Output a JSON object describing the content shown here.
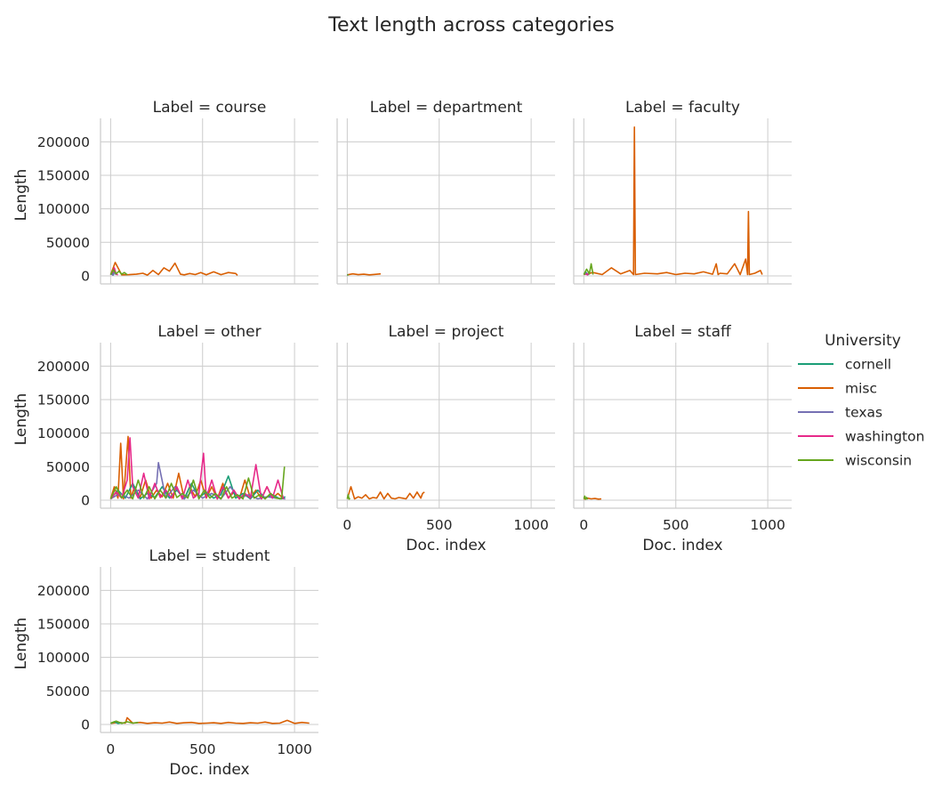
{
  "chart_data": {
    "type": "line",
    "title": "Text length across categories",
    "xlabel": "Doc. index",
    "ylabel": "Length",
    "xlim": [
      -55,
      1130
    ],
    "ylim": [
      -12000,
      235000
    ],
    "xticks": [
      0,
      500,
      1000
    ],
    "yticks": [
      0,
      50000,
      100000,
      150000,
      200000
    ],
    "grid": true,
    "legend": {
      "title": "University",
      "placement": "right",
      "entries": [
        {
          "name": "cornell",
          "color": "#1b9e77"
        },
        {
          "name": "misc",
          "color": "#d95f02"
        },
        {
          "name": "texas",
          "color": "#7570b3"
        },
        {
          "name": "washington",
          "color": "#e7298a"
        },
        {
          "name": "wisconsin",
          "color": "#66a61e"
        }
      ]
    },
    "facets": [
      {
        "title": "Label = course",
        "series": [
          {
            "name": "misc",
            "x": [
              0,
              25,
              60,
              100,
              140,
              175,
              200,
              230,
              260,
              290,
              320,
              350,
              380,
              400,
              430,
              460,
              490,
              520,
              560,
              600,
              640,
              680,
              690
            ],
            "y": [
              1500,
              20000,
              1500,
              1800,
              2500,
              4000,
              1200,
              8000,
              2000,
              12000,
              7000,
              19000,
              2500,
              1500,
              3500,
              2000,
              5000,
              1500,
              6000,
              1800,
              5000,
              3500,
              800
            ]
          },
          {
            "name": "cornell",
            "x": [
              0,
              8,
              15,
              22,
              30
            ],
            "y": [
              2000,
              5000,
              1500,
              8000,
              2500
            ]
          },
          {
            "name": "texas",
            "x": [
              5,
              12,
              20,
              28
            ],
            "y": [
              3000,
              1000,
              6000,
              2000
            ]
          },
          {
            "name": "washington",
            "x": [
              10,
              20,
              30,
              40
            ],
            "y": [
              4000,
              12000,
              2500,
              1500
            ]
          },
          {
            "name": "wisconsin",
            "x": [
              0,
              15,
              30,
              45,
              60,
              75,
              90
            ],
            "y": [
              2000,
              9000,
              3000,
              7000,
              2500,
              5000,
              1500
            ]
          }
        ]
      },
      {
        "title": "Label = department",
        "series": [
          {
            "name": "misc",
            "x": [
              0,
              30,
              60,
              90,
              120,
              150,
              182
            ],
            "y": [
              1500,
              3000,
              1800,
              2500,
              1500,
              2200,
              3000
            ]
          },
          {
            "name": "cornell",
            "x": [
              0,
              5
            ],
            "y": [
              1000,
              2000
            ]
          },
          {
            "name": "wisconsin",
            "x": [
              0,
              5
            ],
            "y": [
              1500,
              1000
            ]
          }
        ]
      },
      {
        "title": "Label = faculty",
        "series": [
          {
            "name": "misc",
            "x": [
              0,
              50,
              100,
              150,
              200,
              250,
              270,
              275,
              280,
              330,
              400,
              450,
              500,
              550,
              600,
              650,
              700,
              720,
              730,
              740,
              780,
              820,
              850,
              880,
              890,
              895,
              900,
              930,
              960,
              970
            ],
            "y": [
              2000,
              5000,
              2000,
              12000,
              3000,
              8000,
              2000,
              222000,
              2000,
              4000,
              3000,
              5000,
              2000,
              4000,
              3000,
              6000,
              2500,
              18000,
              2000,
              4000,
              3000,
              18000,
              2000,
              25000,
              2000,
              96000,
              2000,
              4000,
              8000,
              2000
            ]
          },
          {
            "name": "cornell",
            "x": [
              0,
              10,
              20,
              30
            ],
            "y": [
              2000,
              6000,
              1500,
              3000
            ]
          },
          {
            "name": "texas",
            "x": [
              5,
              15,
              25
            ],
            "y": [
              2500,
              4000,
              1500
            ]
          },
          {
            "name": "washington",
            "x": [
              10,
              20,
              30
            ],
            "y": [
              3000,
              1500,
              5000
            ]
          },
          {
            "name": "wisconsin",
            "x": [
              0,
              15,
              30,
              40,
              50
            ],
            "y": [
              2000,
              10000,
              3000,
              18000,
              2000
            ]
          }
        ]
      },
      {
        "title": "Label = other",
        "series": [
          {
            "name": "misc",
            "x": [
              0,
              20,
              40,
              55,
              70,
              95,
              110,
              130,
              160,
              190,
              220,
              250,
              280,
              310,
              340,
              370,
              400,
              430,
              460,
              490,
              520,
              550,
              580,
              610,
              640,
              670,
              700,
              730,
              760,
              790,
              820,
              850,
              880,
              910,
              940
            ],
            "y": [
              2000,
              20000,
              3000,
              85000,
              2000,
              95000,
              3000,
              20000,
              4000,
              30000,
              3000,
              15000,
              5000,
              25000,
              3000,
              40000,
              2000,
              20000,
              5000,
              30000,
              3000,
              20000,
              2000,
              25000,
              3000,
              12000,
              2000,
              30000,
              3000,
              15000,
              2000,
              20000,
              3000,
              10000,
              2000
            ]
          },
          {
            "name": "cornell",
            "x": [
              0,
              40,
              80,
              120,
              160,
              200,
              240,
              280,
              320,
              360,
              400,
              440,
              480,
              520,
              560,
              600,
              640,
              680,
              720,
              760,
              800,
              840,
              880,
              920,
              950
            ],
            "y": [
              2000,
              15000,
              3000,
              25000,
              2000,
              10000,
              4000,
              20000,
              3000,
              15000,
              2000,
              25000,
              4000,
              12000,
              3000,
              8000,
              36000,
              3000,
              10000,
              2000,
              15000,
              3000,
              8000,
              2000,
              5000
            ]
          },
          {
            "name": "texas",
            "x": [
              0,
              50,
              100,
              150,
              200,
              250,
              260,
              300,
              350,
              400,
              450,
              500,
              550,
              600,
              650,
              700,
              750,
              800,
              850,
              900,
              950
            ],
            "y": [
              2000,
              10000,
              3000,
              15000,
              2000,
              25000,
              56000,
              3000,
              20000,
              2000,
              15000,
              3000,
              10000,
              2000,
              20000,
              3000,
              8000,
              2000,
              5000,
              3000,
              2000
            ]
          },
          {
            "name": "washington",
            "x": [
              0,
              30,
              60,
              90,
              105,
              120,
              150,
              180,
              210,
              240,
              270,
              300,
              330,
              360,
              390,
              420,
              450,
              480,
              505,
              520,
              550,
              580,
              610,
              640,
              670,
              700,
              730,
              760,
              790,
              820,
              850,
              880,
              910,
              940
            ],
            "y": [
              2000,
              12000,
              3000,
              30000,
              93000,
              20000,
              3000,
              40000,
              2000,
              25000,
              4000,
              15000,
              3000,
              20000,
              2000,
              30000,
              3000,
              10000,
              70000,
              4000,
              30000,
              2000,
              20000,
              3000,
              15000,
              2000,
              10000,
              3000,
              53000,
              2000,
              20000,
              3000,
              30000,
              2000
            ]
          },
          {
            "name": "wisconsin",
            "x": [
              0,
              30,
              60,
              90,
              120,
              150,
              180,
              210,
              240,
              270,
              300,
              330,
              360,
              390,
              420,
              450,
              480,
              510,
              540,
              570,
              600,
              630,
              660,
              690,
              720,
              750,
              780,
              810,
              840,
              870,
              900,
              930,
              945
            ],
            "y": [
              2000,
              20000,
              3000,
              15000,
              2000,
              30000,
              3000,
              20000,
              2000,
              15000,
              3000,
              25000,
              4000,
              10000,
              3000,
              30000,
              2000,
              15000,
              3000,
              10000,
              2000,
              20000,
              3000,
              8000,
              2000,
              33000,
              3000,
              8000,
              2000,
              10000,
              3000,
              2000,
              50000
            ]
          }
        ]
      },
      {
        "title": "Label = project",
        "series": [
          {
            "name": "misc",
            "x": [
              0,
              20,
              40,
              60,
              80,
              100,
              120,
              140,
              160,
              180,
              200,
              220,
              240,
              260,
              280,
              300,
              320,
              340,
              360,
              380,
              400,
              410,
              420
            ],
            "y": [
              2000,
              20000,
              2000,
              5000,
              3000,
              8000,
              2000,
              4000,
              3000,
              12000,
              2000,
              10000,
              3000,
              2000,
              4000,
              3000,
              2000,
              10000,
              3000,
              12000,
              3000,
              10000,
              12000
            ]
          },
          {
            "name": "wisconsin",
            "x": [
              0,
              5,
              10,
              15
            ],
            "y": [
              2000,
              8000,
              1500,
              3000
            ]
          }
        ]
      },
      {
        "title": "Label = staff",
        "series": [
          {
            "name": "misc",
            "x": [
              0,
              20,
              40,
              60,
              80,
              95
            ],
            "y": [
              1500,
              3000,
              2000,
              2500,
              1500,
              2000
            ]
          },
          {
            "name": "wisconsin",
            "x": [
              0,
              5,
              10,
              15,
              20
            ],
            "y": [
              2000,
              6000,
              1500,
              4000,
              1000
            ]
          }
        ]
      },
      {
        "title": "Label = student",
        "series": [
          {
            "name": "misc",
            "x": [
              0,
              40,
              80,
              90,
              120,
              160,
              200,
              240,
              280,
              320,
              360,
              400,
              440,
              480,
              520,
              560,
              600,
              640,
              680,
              720,
              760,
              800,
              840,
              880,
              920,
              960,
              1000,
              1040,
              1080
            ],
            "y": [
              1500,
              3000,
              2000,
              10000,
              2000,
              3000,
              1500,
              2500,
              2000,
              3500,
              1500,
              2500,
              3000,
              1500,
              2000,
              2500,
              1500,
              3000,
              2000,
              1500,
              2500,
              2000,
              3500,
              1500,
              2000,
              6000,
              1500,
              3000,
              2000
            ]
          },
          {
            "name": "cornell",
            "x": [
              0,
              20,
              40,
              60
            ],
            "y": [
              1500,
              4000,
              1500,
              2500
            ]
          },
          {
            "name": "wisconsin",
            "x": [
              0,
              30,
              60,
              90,
              120,
              150
            ],
            "y": [
              2000,
              5000,
              1500,
              4000,
              2000,
              3000
            ]
          }
        ]
      }
    ]
  }
}
